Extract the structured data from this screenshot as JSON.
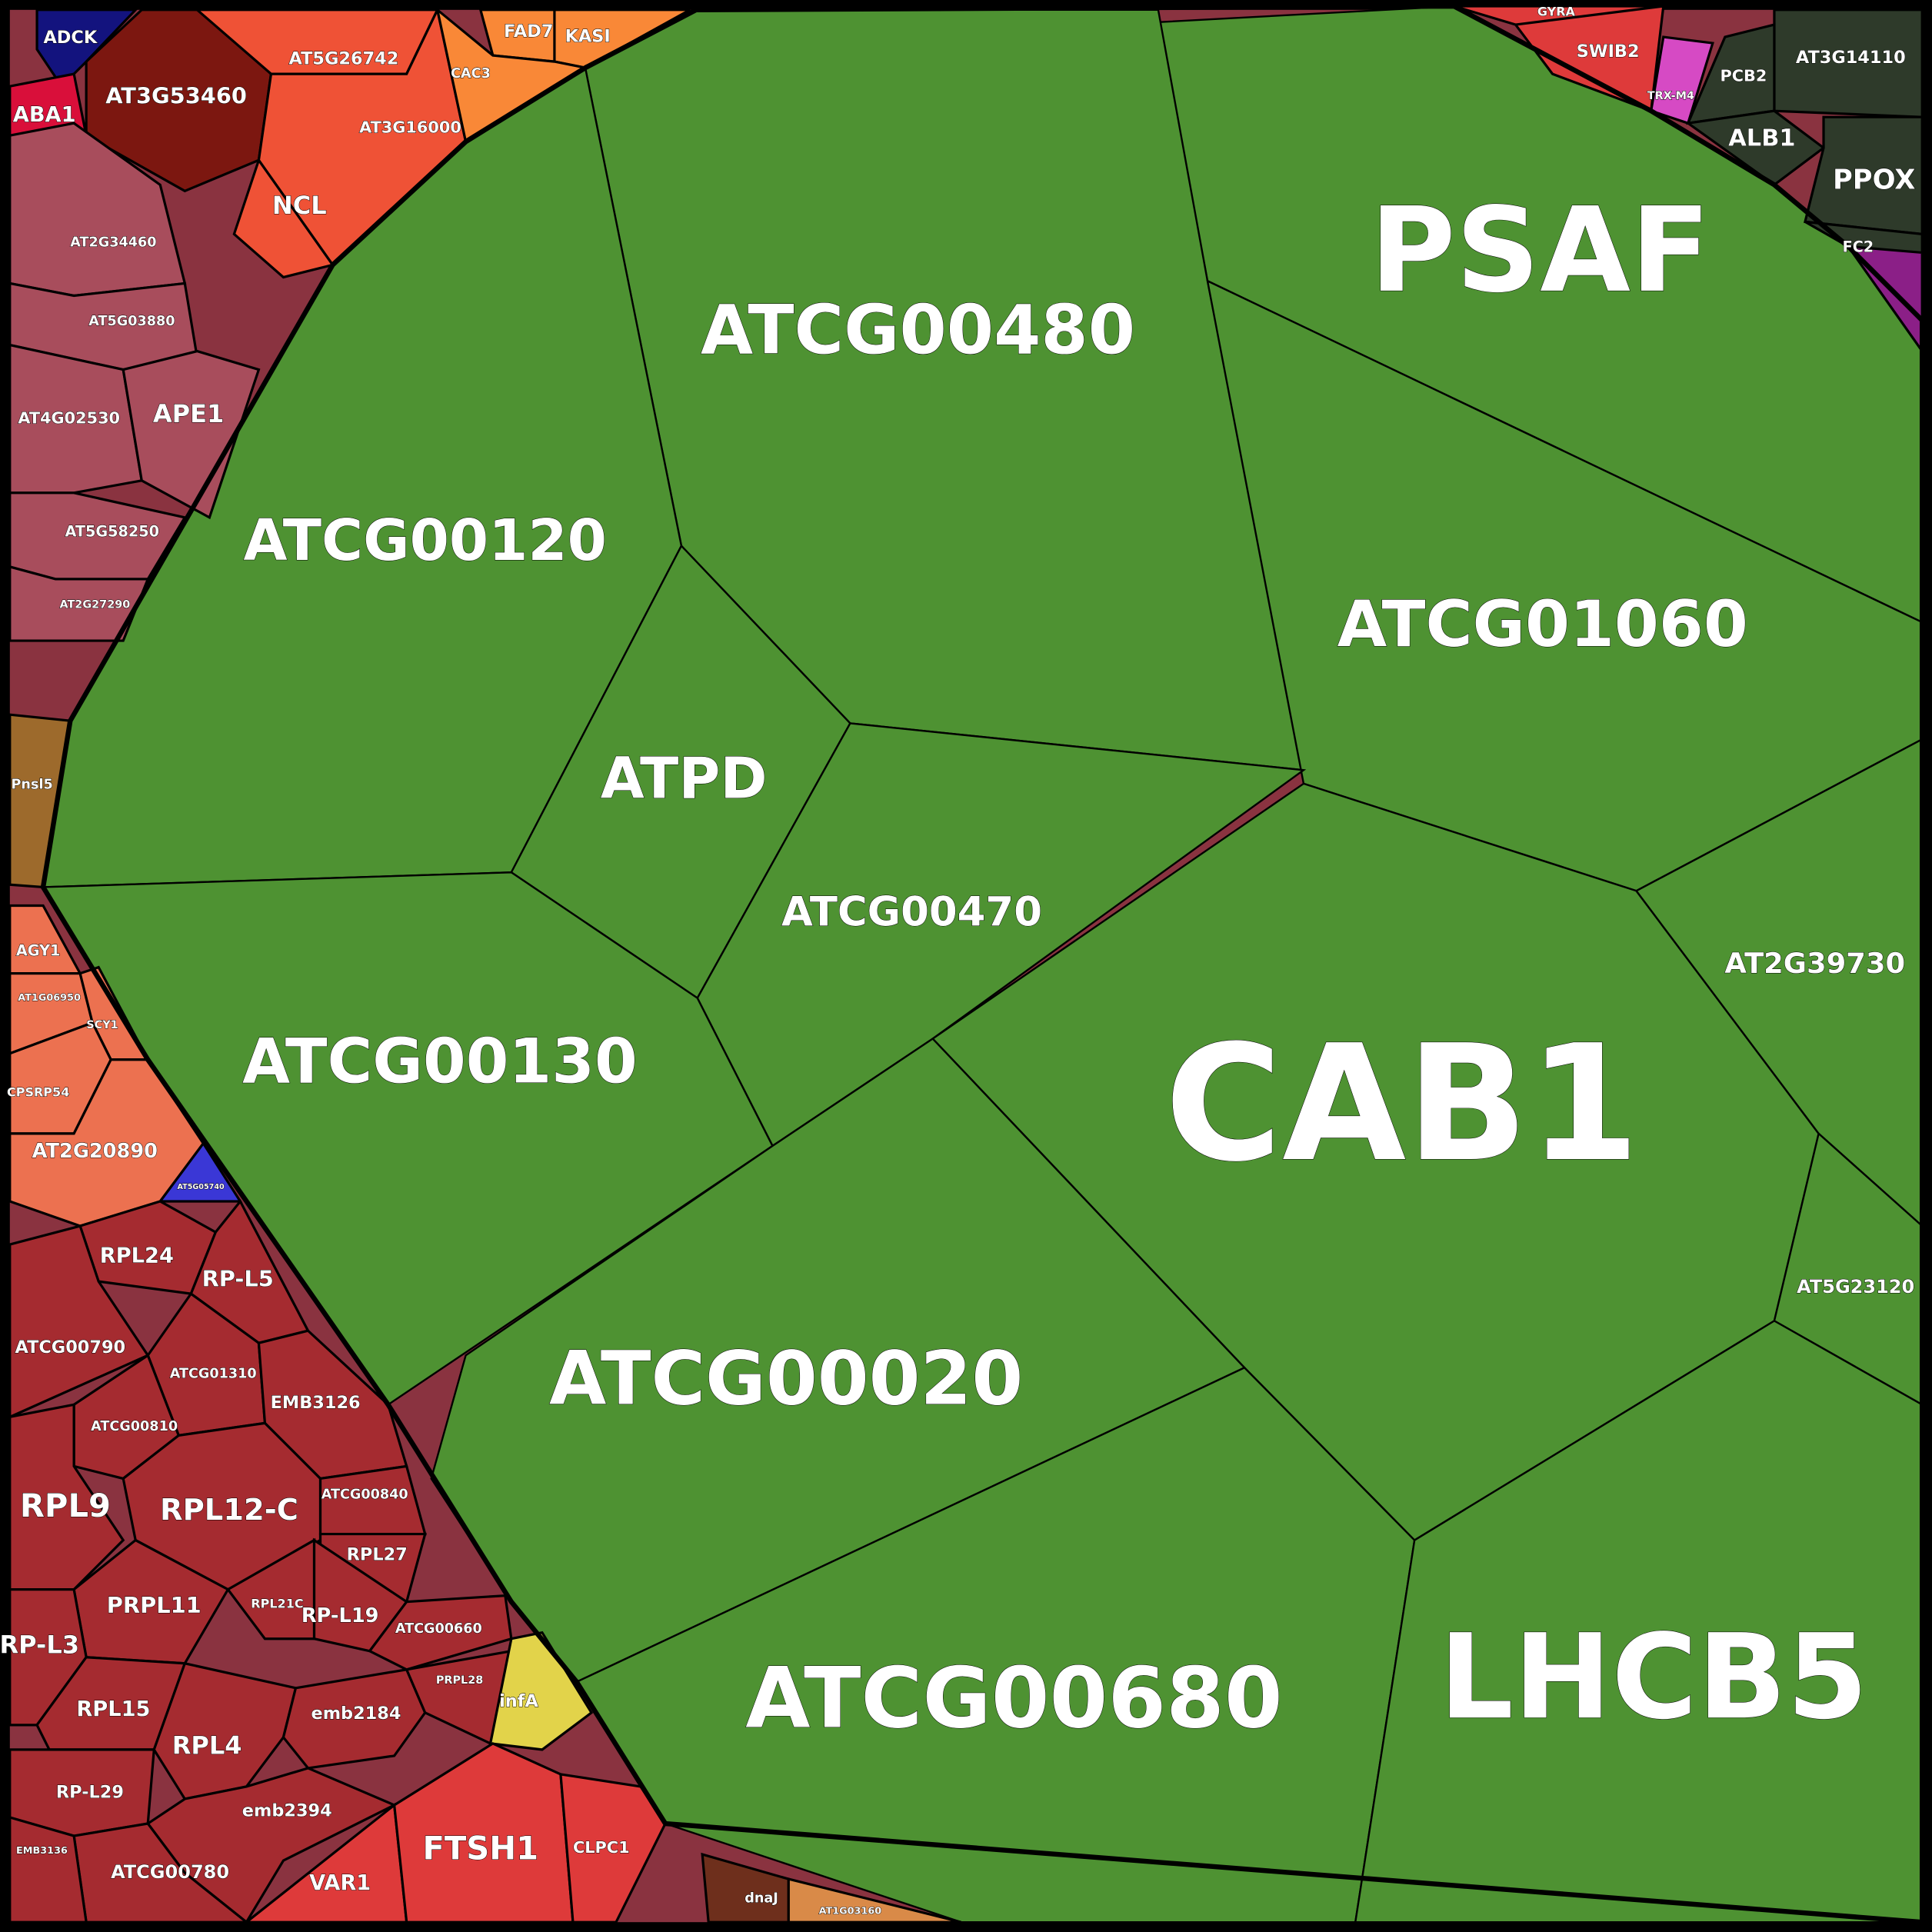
{
  "colors": {
    "photosynthesis_green": "#4e9232",
    "ribosome_red": "#a52b30",
    "mauve": "#a84d5c",
    "orange_red": "#ef5236",
    "orange": "#f98837",
    "dark_red": "#7c1710",
    "dark_olive": "#2e3a2a",
    "salmon": "#ec7150",
    "brown": "#9d6a2c",
    "bright_red": "#de3a3a",
    "yellow": "#e2d34a",
    "navy": "#13137e",
    "crimson": "#d90f3a",
    "pink": "#d64ac4",
    "purple": "#8b1f87",
    "chocolate": "#6e2f1c",
    "blue": "#3a37d6",
    "light_orange": "#d98a48"
  },
  "cells": [
    {
      "label": "PSAF",
      "color": "photosynthesis_green"
    },
    {
      "label": "ATCG00480",
      "color": "photosynthesis_green"
    },
    {
      "label": "ATCG01060",
      "color": "photosynthesis_green"
    },
    {
      "label": "ATCG00120",
      "color": "photosynthesis_green"
    },
    {
      "label": "ATPD",
      "color": "photosynthesis_green"
    },
    {
      "label": "ATCG00470",
      "color": "photosynthesis_green"
    },
    {
      "label": "ATCG00130",
      "color": "photosynthesis_green"
    },
    {
      "label": "CAB1",
      "color": "photosynthesis_green"
    },
    {
      "label": "AT2G39730",
      "color": "photosynthesis_green"
    },
    {
      "label": "AT5G23120",
      "color": "photosynthesis_green"
    },
    {
      "label": "ATCG00020",
      "color": "photosynthesis_green"
    },
    {
      "label": "ATCG00680",
      "color": "photosynthesis_green"
    },
    {
      "label": "LHCB5",
      "color": "photosynthesis_green"
    },
    {
      "label": "AT3G53460",
      "color": "dark_red"
    },
    {
      "label": "AT5G26742",
      "color": "orange_red"
    },
    {
      "label": "AT3G16000",
      "color": "orange_red"
    },
    {
      "label": "NCL",
      "color": "orange_red"
    },
    {
      "label": "FAD7",
      "color": "orange"
    },
    {
      "label": "KASI",
      "color": "orange"
    },
    {
      "label": "CAC3",
      "color": "orange"
    },
    {
      "label": "ADCK",
      "color": "navy"
    },
    {
      "label": "ABA1",
      "color": "crimson"
    },
    {
      "label": "AT2G34460",
      "color": "mauve"
    },
    {
      "label": "AT5G03880",
      "color": "mauve"
    },
    {
      "label": "AT4G02530",
      "color": "mauve"
    },
    {
      "label": "APE1",
      "color": "mauve"
    },
    {
      "label": "AT5G58250",
      "color": "mauve"
    },
    {
      "label": "AT2G27290",
      "color": "mauve"
    },
    {
      "label": "Pnsl5",
      "color": "brown"
    },
    {
      "label": "AGY1",
      "color": "salmon"
    },
    {
      "label": "AT1G06950",
      "color": "salmon"
    },
    {
      "label": "SCY1",
      "color": "salmon"
    },
    {
      "label": "CPSRP54",
      "color": "salmon"
    },
    {
      "label": "AT2G20890",
      "color": "salmon"
    },
    {
      "label": "AT5G05740",
      "color": "blue"
    },
    {
      "label": "RPL24",
      "color": "ribosome_red"
    },
    {
      "label": "RP-L5",
      "color": "ribosome_red"
    },
    {
      "label": "ATCG00790",
      "color": "ribosome_red"
    },
    {
      "label": "ATCG01310",
      "color": "ribosome_red"
    },
    {
      "label": "EMB3126",
      "color": "ribosome_red"
    },
    {
      "label": "ATCG00810",
      "color": "ribosome_red"
    },
    {
      "label": "RPL9",
      "color": "ribosome_red"
    },
    {
      "label": "RPL12-C",
      "color": "ribosome_red"
    },
    {
      "label": "ATCG00840",
      "color": "ribosome_red"
    },
    {
      "label": "RPL27",
      "color": "ribosome_red"
    },
    {
      "label": "PRPL11",
      "color": "ribosome_red"
    },
    {
      "label": "RPL21C",
      "color": "ribosome_red"
    },
    {
      "label": "RP-L19",
      "color": "ribosome_red"
    },
    {
      "label": "ATCG00660",
      "color": "ribosome_red"
    },
    {
      "label": "RP-L3",
      "color": "ribosome_red"
    },
    {
      "label": "RPL15",
      "color": "ribosome_red"
    },
    {
      "label": "RPL4",
      "color": "ribosome_red"
    },
    {
      "label": "emb2184",
      "color": "ribosome_red"
    },
    {
      "label": "RP-L29",
      "color": "ribosome_red"
    },
    {
      "label": "emb2394",
      "color": "ribosome_red"
    },
    {
      "label": "ATCG00780",
      "color": "ribosome_red"
    },
    {
      "label": "EMB3136",
      "color": "ribosome_red"
    },
    {
      "label": "PRPL28",
      "color": "ribosome_red"
    },
    {
      "label": "infA",
      "color": "yellow"
    },
    {
      "label": "VAR1",
      "color": "bright_red"
    },
    {
      "label": "FTSH1",
      "color": "bright_red"
    },
    {
      "label": "CLPC1",
      "color": "bright_red"
    },
    {
      "label": "dnaJ",
      "color": "chocolate"
    },
    {
      "label": "AT1G03160",
      "color": "light_orange"
    },
    {
      "label": "GYRA",
      "color": "bright_red"
    },
    {
      "label": "SWIB2",
      "color": "bright_red"
    },
    {
      "label": "TRX-M4",
      "color": "pink"
    },
    {
      "label": "AT3G14110",
      "color": "dark_olive"
    },
    {
      "label": "PCB2",
      "color": "dark_olive"
    },
    {
      "label": "ALB1",
      "color": "dark_olive"
    },
    {
      "label": "PPOX",
      "color": "dark_olive"
    },
    {
      "label": "FC2",
      "color": "dark_olive"
    },
    {
      "label": "",
      "color": "purple"
    }
  ]
}
